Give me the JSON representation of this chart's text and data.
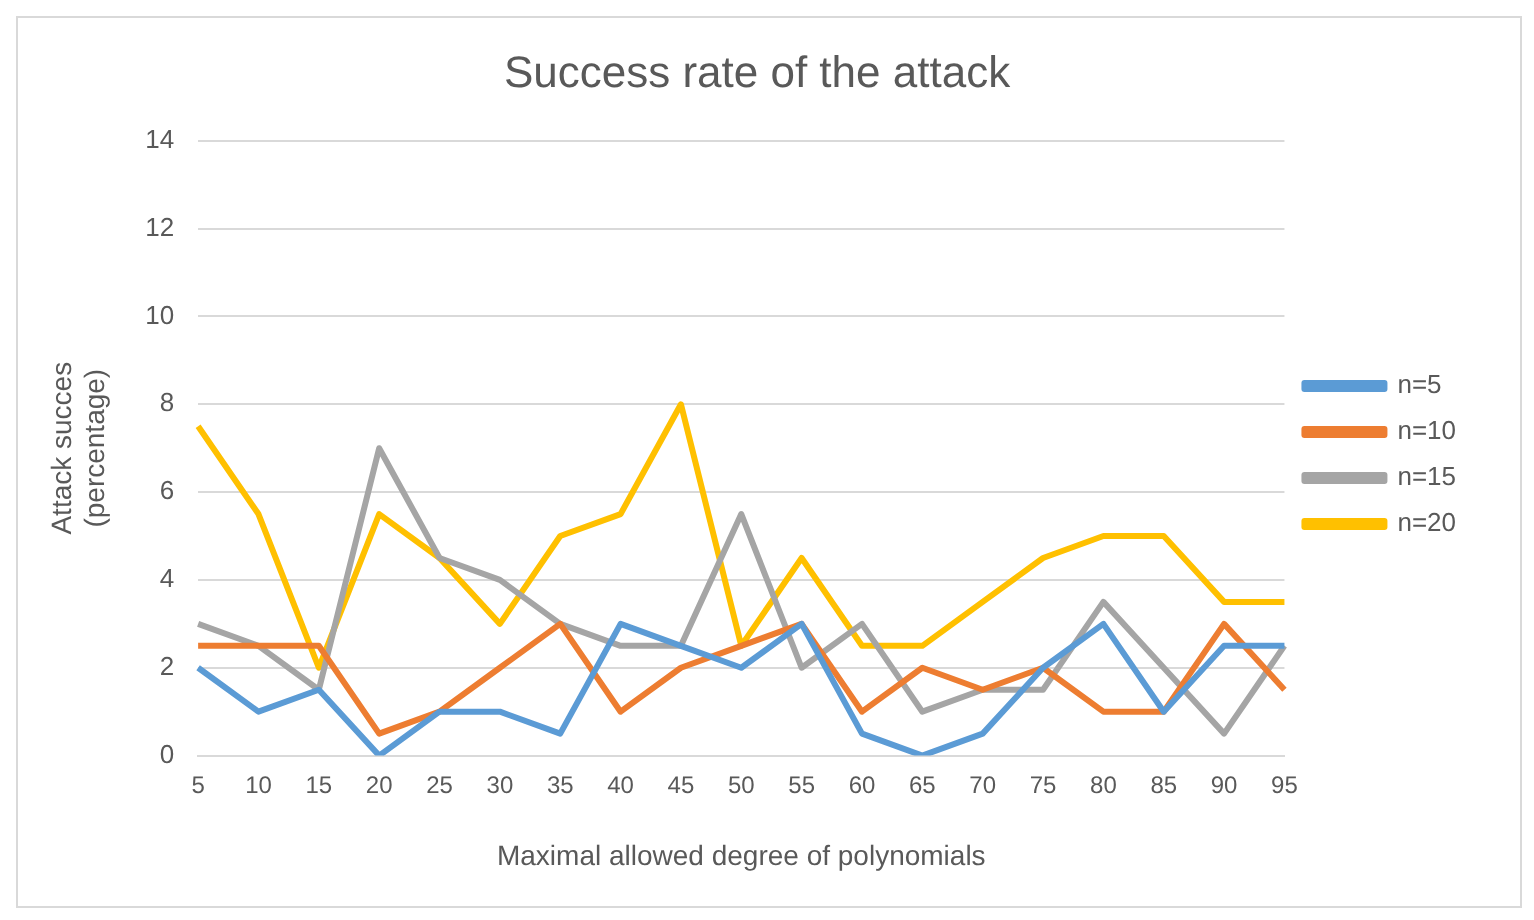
{
  "chart_data": {
    "type": "line",
    "title": "Success rate of the attack",
    "xlabel": "Maximal allowed degree of polynomials",
    "ylabel": "Attack succes (percentage)",
    "categories": [
      "5",
      "10",
      "15",
      "20",
      "25",
      "30",
      "35",
      "40",
      "45",
      "50",
      "55",
      "60",
      "65",
      "70",
      "75",
      "80",
      "85",
      "90",
      "95"
    ],
    "series": [
      {
        "name": "n=5",
        "color": "#5b9bd5",
        "values": [
          2,
          1,
          1.5,
          0,
          1,
          1,
          0.5,
          3,
          2.5,
          2,
          3,
          0.5,
          0,
          0.5,
          2,
          3,
          1,
          2.5,
          2.5
        ]
      },
      {
        "name": "n=10",
        "color": "#ed7d31",
        "values": [
          2.5,
          2.5,
          2.5,
          0.5,
          1,
          2,
          3,
          1,
          2,
          2.5,
          3,
          1,
          2,
          1.5,
          2,
          1,
          1,
          3,
          1.5
        ]
      },
      {
        "name": "n=15",
        "color": "#a5a5a5",
        "values": [
          3,
          2.5,
          1.5,
          7,
          4.5,
          4,
          3,
          2.5,
          2.5,
          5.5,
          2,
          3,
          1,
          1.5,
          1.5,
          3.5,
          2,
          0.5,
          2.5
        ]
      },
      {
        "name": "n=20",
        "color": "#ffc000",
        "values": [
          7.5,
          5.5,
          2,
          5.5,
          4.5,
          3,
          5,
          5.5,
          8,
          2.5,
          4.5,
          2.5,
          2.5,
          3.5,
          4.5,
          5,
          5,
          3.5,
          3.5
        ]
      }
    ],
    "ylim": [
      0,
      14
    ],
    "yticks": [
      0,
      2,
      4,
      6,
      8,
      10,
      12,
      14
    ],
    "grid": "y",
    "legend": "right",
    "marker": "none",
    "line_style": "solid"
  }
}
